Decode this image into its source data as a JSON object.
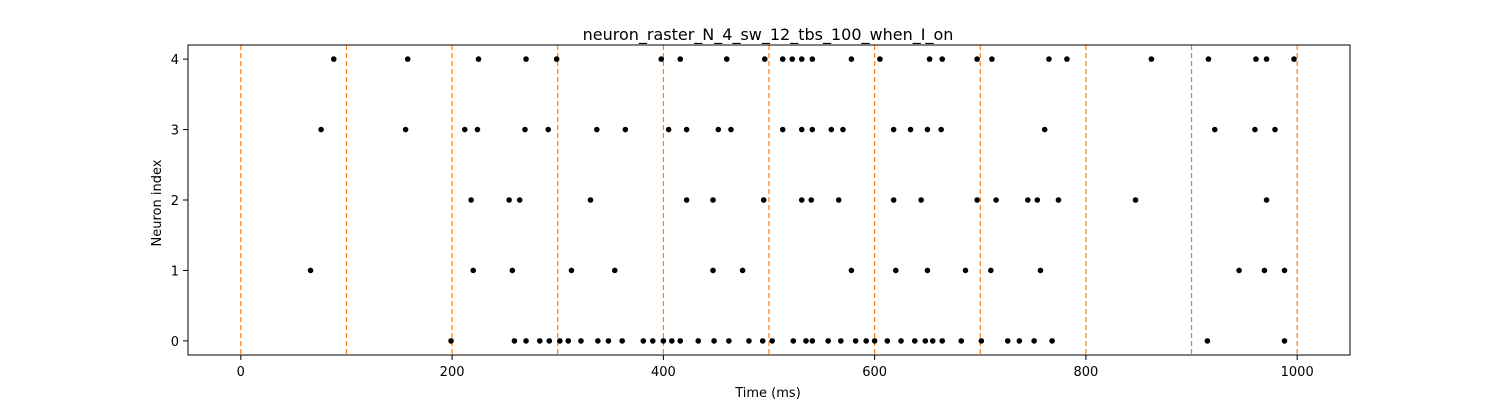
{
  "chart_data": {
    "type": "scatter",
    "title": "neuron_raster_N_4_sw_12_tbs_100_when_I_on",
    "xlabel": "Time (ms)",
    "ylabel": "Neuron index",
    "xlim": [
      -50,
      1050
    ],
    "ylim": [
      -0.2,
      4.2
    ],
    "xticks": [
      0,
      200,
      400,
      600,
      800,
      1000
    ],
    "yticks": [
      0,
      1,
      2,
      3,
      4
    ],
    "xtick_labels": [
      "0",
      "200",
      "400",
      "600",
      "800",
      "1000"
    ],
    "ytick_labels": [
      "0",
      "1",
      "2",
      "3",
      "4"
    ],
    "grid": false,
    "legend": "none",
    "marker_color": "#000000",
    "vline_color": "#ff7f0e",
    "vlines_x": [
      0,
      100,
      200,
      300,
      400,
      500,
      600,
      700,
      800,
      900,
      1000
    ],
    "series": [
      {
        "y": 4,
        "x": [
          88,
          158,
          225,
          270,
          299,
          398,
          416,
          460,
          496,
          513,
          522,
          531,
          541,
          578,
          605,
          652,
          664,
          697,
          711,
          765,
          782,
          862,
          916,
          961,
          971,
          997
        ]
      },
      {
        "y": 3,
        "x": [
          76,
          156,
          212,
          224,
          269,
          291,
          337,
          364,
          405,
          422,
          452,
          464,
          513,
          531,
          541,
          559,
          570,
          618,
          634,
          650,
          663,
          761,
          922,
          960,
          979
        ]
      },
      {
        "y": 2,
        "x": [
          218,
          254,
          264,
          331,
          422,
          447,
          495,
          531,
          540,
          566,
          618,
          644,
          697,
          715,
          745,
          754,
          774,
          847,
          971
        ]
      },
      {
        "y": 1,
        "x": [
          66,
          220,
          257,
          313,
          354,
          447,
          475,
          578,
          620,
          650,
          686,
          710,
          757,
          945,
          969,
          988
        ]
      },
      {
        "y": 0,
        "x": [
          199,
          259,
          270,
          283,
          292,
          302,
          310,
          322,
          338,
          348,
          361,
          381,
          390,
          400,
          408,
          416,
          433,
          448,
          462,
          481,
          494,
          503,
          523,
          535,
          541,
          556,
          568,
          582,
          592,
          600,
          612,
          625,
          638,
          648,
          655,
          664,
          682,
          701,
          726,
          737,
          751,
          768,
          915,
          988
        ]
      }
    ]
  }
}
